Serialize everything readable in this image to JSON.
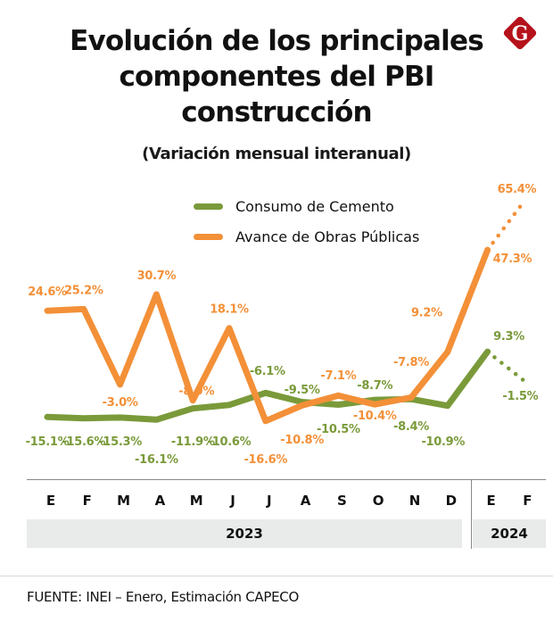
{
  "header": {
    "title_lines": [
      "Evolución de los principales",
      "componentes del PBI",
      "construcción"
    ],
    "subtitle": "(Variación mensual interanual)",
    "logo": {
      "icon": "brand-g-diamond-icon",
      "letter": "G",
      "color": "#b5121b"
    }
  },
  "colors": {
    "cement": "#7a9a3a",
    "public_works": "#f39038"
  },
  "chart_data": {
    "type": "line",
    "title": "Evolución de los principales componentes del PBI construcción",
    "subtitle": "(Variación mensual interanual)",
    "xlabel": "",
    "ylabel": "",
    "x": [
      "E",
      "F",
      "M",
      "A",
      "M",
      "J",
      "J",
      "A",
      "S",
      "O",
      "N",
      "D",
      "E",
      "F"
    ],
    "year_groups": [
      {
        "label": "2023",
        "start": 0,
        "end": 11
      },
      {
        "label": "2024",
        "start": 12,
        "end": 13
      }
    ],
    "ylim": [
      -20,
      70
    ],
    "grid": false,
    "legend": "top-center",
    "series": [
      {
        "name": "Consumo de Cemento",
        "color": "#7a9a3a",
        "values": [
          -15.1,
          -15.6,
          -15.3,
          -16.1,
          -11.9,
          -10.6,
          -6.1,
          -9.5,
          -10.5,
          -8.7,
          -8.4,
          -10.9,
          9.3,
          -1.5
        ],
        "labels": [
          "-15.1%",
          "-15.6%",
          "-15.3%",
          "-16.1%",
          "-11.9%",
          "-10.6%",
          "-6.1%",
          "-9.5%",
          "-10.5%",
          "-8.7%",
          "-8.4%",
          "-10.9%",
          "9.3%",
          "-1.5%"
        ],
        "label_pos": [
          "below",
          "below",
          "below",
          "below2",
          "below",
          "below",
          "above",
          "above",
          "below",
          "above",
          "below",
          "below2",
          "above",
          "below"
        ],
        "dotted_from_index": 12
      },
      {
        "name": "Avance de Obras Públicas",
        "color": "#f39038",
        "values": [
          24.6,
          25.2,
          -3.0,
          30.7,
          -8.9,
          18.1,
          -16.6,
          -10.8,
          -7.1,
          -10.4,
          -7.8,
          9.2,
          47.3,
          65.4
        ],
        "labels": [
          "24.6%",
          "25.2%",
          "-3.0%",
          "30.7%",
          "-8.9%",
          "18.1%",
          "-16.6%",
          "-10.8%",
          "-7.1%",
          "-10.4%",
          "-7.8%",
          "9.2%",
          "47.3%",
          "65.4%"
        ],
        "label_pos": [
          "above",
          "above",
          "below",
          "above",
          "above",
          "above",
          "below2",
          "below",
          "above",
          "below",
          "above",
          "left",
          "right",
          "above"
        ],
        "dotted_from_index": 12
      }
    ]
  },
  "axis": {
    "months": [
      "E",
      "F",
      "M",
      "A",
      "M",
      "J",
      "J",
      "A",
      "S",
      "O",
      "N",
      "D",
      "E",
      "F"
    ],
    "years": [
      "2023",
      "2024"
    ]
  },
  "footer": {
    "source": "FUENTE: INEI – Enero, Estimación CAPECO"
  }
}
